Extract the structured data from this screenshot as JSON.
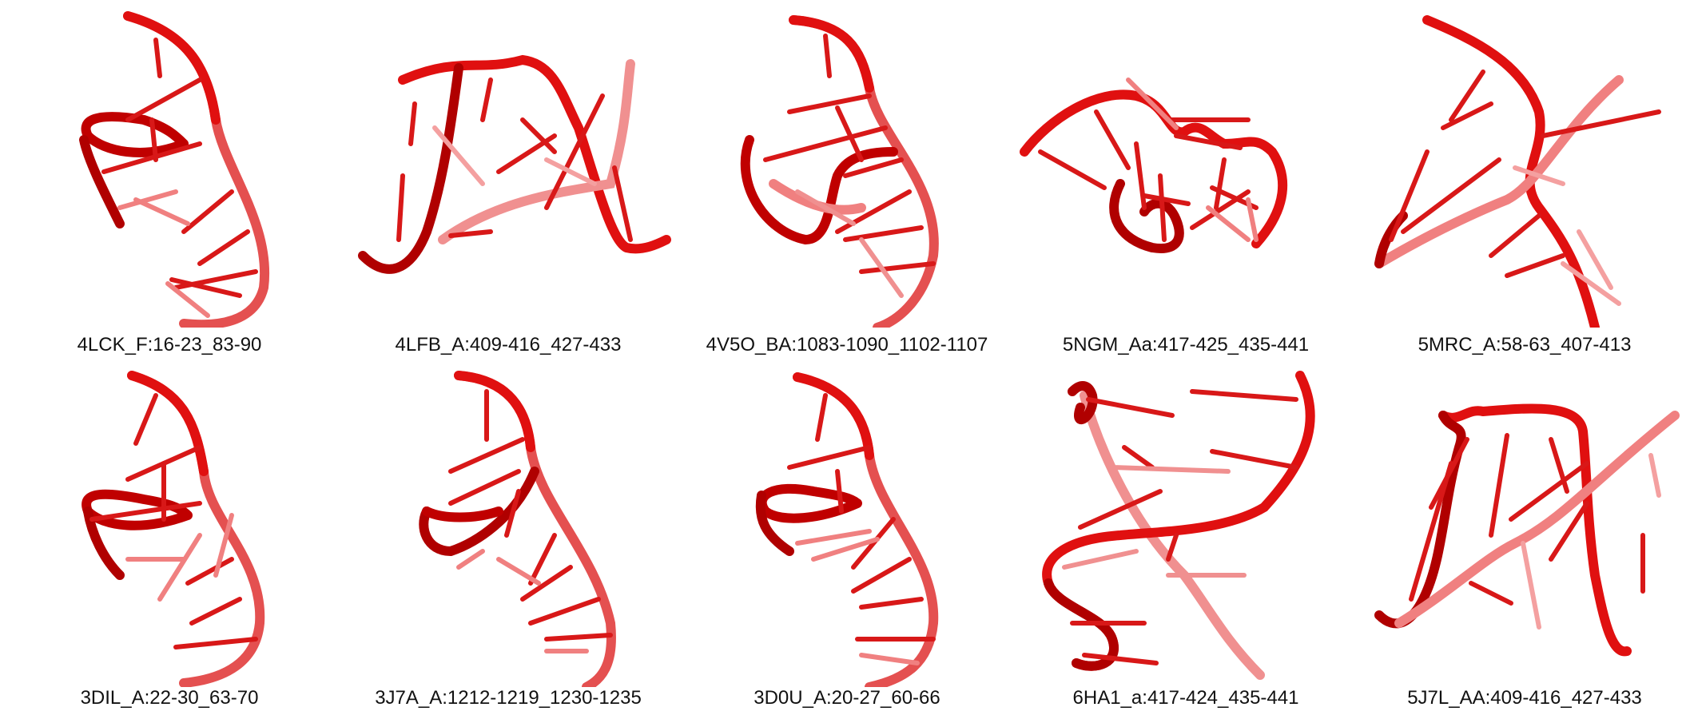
{
  "panels": [
    {
      "label": "4LCK_F:16-23_83-90"
    },
    {
      "label": "4LFB_A:409-416_427-433"
    },
    {
      "label": "4V5O_BA:1083-1090_1102-1107"
    },
    {
      "label": "5NGM_Aa:417-425_435-441"
    },
    {
      "label": "5MRC_A:58-63_407-413"
    },
    {
      "label": "3DIL_A:22-30_63-70"
    },
    {
      "label": "3J7A_A:1212-1219_1230-1235"
    },
    {
      "label": "3D0U_A:20-27_60-66"
    },
    {
      "label": "6HA1_a:417-424_435-441"
    },
    {
      "label": "5J7L_AA:409-416_427-433"
    }
  ],
  "colors": {
    "backbone": "#e01010",
    "backbone_dark": "#9a0000",
    "backbone_light": "#f07070",
    "bases": "#d81818"
  }
}
